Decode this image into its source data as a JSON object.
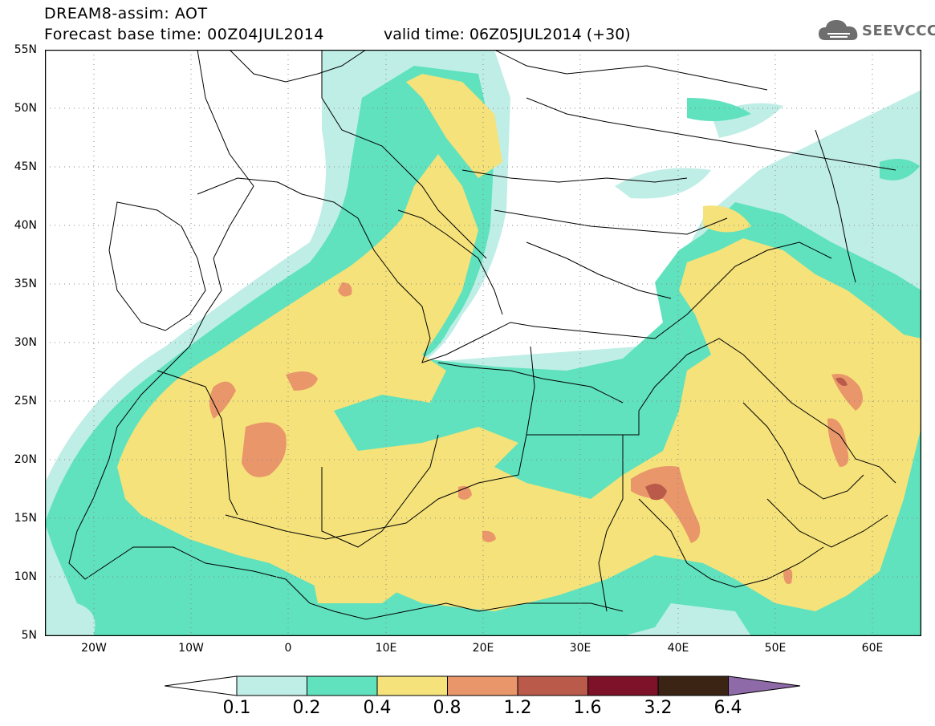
{
  "header": {
    "title": "DREAM8-assim: AOT",
    "base_time": "Forecast base time: 00Z04JUL2014",
    "valid_time": "valid time: 06Z05JUL2014 (+30)"
  },
  "logo": {
    "text": "SEEVCCC",
    "icon": "cloud-icon"
  },
  "map": {
    "variable": "AOT",
    "projection": "cylindrical equidistant",
    "lon_range": [
      -25,
      65
    ],
    "lat_range": [
      5,
      55
    ],
    "gridlines": true,
    "lat_ticks": [
      "55N",
      "50N",
      "45N",
      "40N",
      "35N",
      "30N",
      "25N",
      "20N",
      "15N",
      "10N",
      "5N"
    ],
    "lon_ticks": [
      "20W",
      "10W",
      "0",
      "10E",
      "20E",
      "30E",
      "40E",
      "50E",
      "60E"
    ]
  },
  "colorbar": {
    "labels": [
      "0.1",
      "0.2",
      "0.4",
      "0.8",
      "1.2",
      "1.6",
      "3.2",
      "6.4"
    ],
    "colors": [
      "#ffffff",
      "#bfeee6",
      "#5fe2bd",
      "#f5e27a",
      "#e9966a",
      "#b95a4a",
      "#7d1228",
      "#3b2414",
      "#8f6aa8"
    ]
  }
}
